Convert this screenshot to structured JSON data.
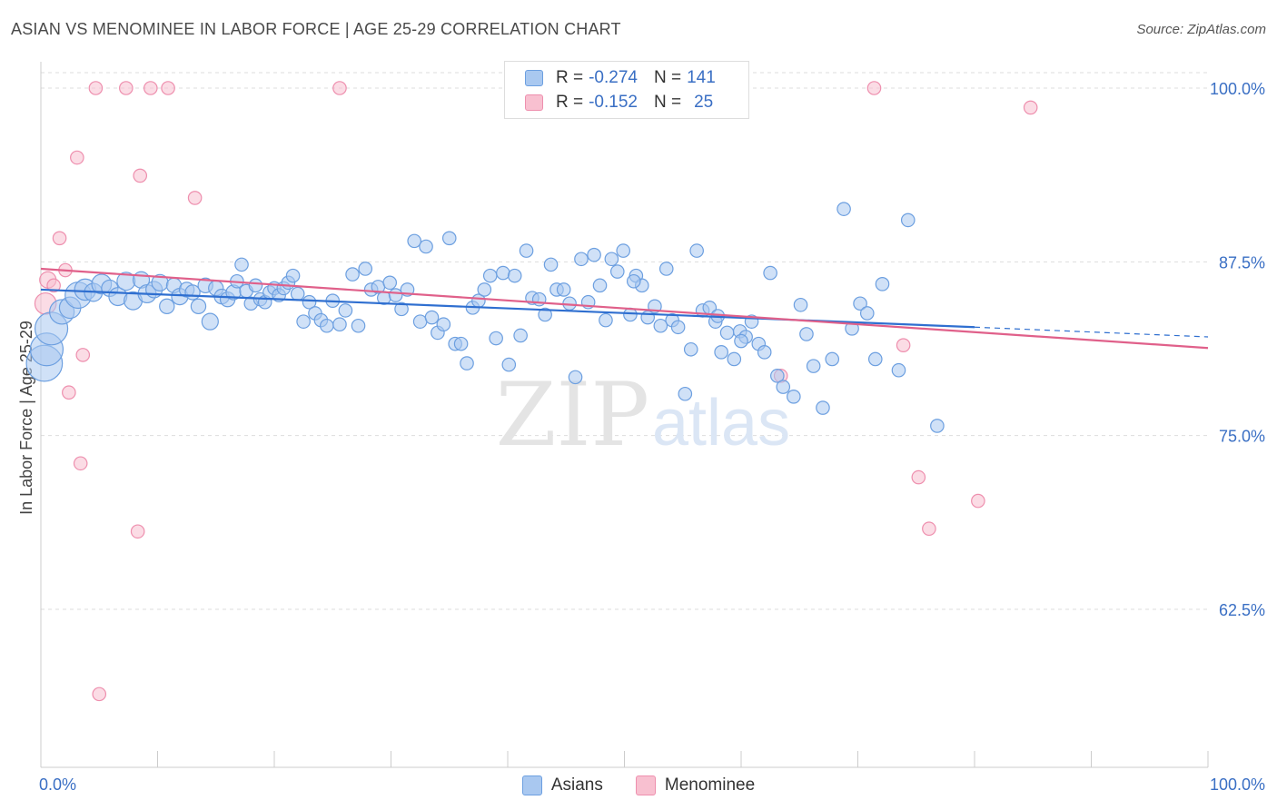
{
  "title": "ASIAN VS MENOMINEE IN LABOR FORCE | AGE 25-29 CORRELATION CHART",
  "source": "Source: ZipAtlas.com",
  "watermark": {
    "zip": "ZIP",
    "atlas": "atlas"
  },
  "legend": {
    "asians": {
      "r_label": "R =",
      "r_value": "-0.274",
      "n_label": "N =",
      "n_value": "141"
    },
    "menominee": {
      "r_label": "R =",
      "r_value": "-0.152",
      "n_label": "N =",
      "n_value": "25"
    }
  },
  "colors": {
    "asians_fill": "#a9c8f0",
    "asians_stroke": "#6c9fe0",
    "asians_line": "#2f6fd0",
    "menominee_fill": "#f8c0d0",
    "menominee_stroke": "#ee8fae",
    "menominee_line": "#e0608a",
    "tick_label": "#3a6fc4",
    "grid": "#dddddd"
  },
  "chart_data": {
    "type": "scatter",
    "title": "ASIAN VS MENOMINEE IN LABOR FORCE | AGE 25-29 CORRELATION CHART",
    "xlabel": "",
    "ylabel": "In Labor Force | Age 25-29",
    "xlim": [
      0,
      100
    ],
    "ylim": [
      50.5,
      101.5
    ],
    "x_tick_labels": [
      "0.0%",
      "100.0%"
    ],
    "y_ticks": [
      62.5,
      75.0,
      87.5,
      100.0
    ],
    "y_tick_labels": [
      "62.5%",
      "75.0%",
      "87.5%",
      "100.0%"
    ],
    "grid": true,
    "legend_position": "top-center",
    "series": [
      {
        "name": "Asians",
        "r": -0.274,
        "n": 141,
        "trend": {
          "x0": 0,
          "y0": 85.5,
          "x1": 80,
          "y1": 82.8,
          "dashed_to_x": 100,
          "dashed_to_y": 82.1
        },
        "points": [
          [
            0.3,
            80.2,
            2.2
          ],
          [
            0.5,
            81.2,
            2.0
          ],
          [
            0.9,
            82.7,
            2.0
          ],
          [
            1.8,
            83.9,
            1.5
          ],
          [
            2.5,
            84.2,
            1.3
          ],
          [
            3.2,
            85.1,
            1.6
          ],
          [
            3.8,
            85.5,
            1.3
          ],
          [
            4.5,
            85.3,
            1.1
          ],
          [
            5.2,
            85.9,
            1.2
          ],
          [
            5.9,
            85.6,
            1.0
          ],
          [
            6.6,
            85.0,
            1.1
          ],
          [
            7.3,
            86.1,
            1.1
          ],
          [
            7.9,
            84.7,
            1.1
          ],
          [
            8.6,
            86.2,
            1.0
          ],
          [
            9.1,
            85.2,
            1.1
          ],
          [
            9.7,
            85.5,
            1.0
          ],
          [
            10.2,
            86.0,
            1.0
          ],
          [
            10.8,
            84.3,
            0.9
          ],
          [
            11.4,
            85.8,
            0.9
          ],
          [
            11.9,
            85.0,
            1.0
          ],
          [
            12.5,
            85.5,
            0.9
          ],
          [
            13.0,
            85.3,
            0.9
          ],
          [
            13.5,
            84.3,
            0.9
          ],
          [
            14.1,
            85.8,
            0.9
          ],
          [
            14.5,
            83.2,
            1.0
          ],
          [
            15.0,
            85.6,
            0.9
          ],
          [
            15.5,
            85.0,
            0.9
          ],
          [
            16.0,
            84.8,
            0.9
          ],
          [
            16.5,
            85.3,
            0.9
          ],
          [
            16.8,
            86.1,
            0.8
          ],
          [
            17.2,
            87.3,
            0.8
          ],
          [
            17.6,
            85.4,
            0.8
          ],
          [
            18.0,
            84.5,
            0.8
          ],
          [
            18.4,
            85.8,
            0.8
          ],
          [
            18.8,
            84.8,
            0.8
          ],
          [
            19.2,
            84.6,
            0.8
          ],
          [
            19.6,
            85.3,
            0.8
          ],
          [
            20.0,
            85.6,
            0.8
          ],
          [
            20.4,
            85.1,
            0.8
          ],
          [
            20.8,
            85.6,
            0.8
          ],
          [
            21.2,
            86.0,
            0.8
          ],
          [
            21.6,
            86.5,
            0.8
          ],
          [
            22.0,
            85.2,
            0.8
          ],
          [
            22.5,
            83.2,
            0.8
          ],
          [
            23.0,
            84.6,
            0.8
          ],
          [
            23.5,
            83.8,
            0.8
          ],
          [
            24.0,
            83.3,
            0.8
          ],
          [
            24.5,
            82.9,
            0.8
          ],
          [
            25.0,
            84.7,
            0.8
          ],
          [
            25.6,
            83.0,
            0.8
          ],
          [
            26.1,
            84.0,
            0.8
          ],
          [
            26.7,
            86.6,
            0.8
          ],
          [
            27.2,
            82.9,
            0.8
          ],
          [
            27.8,
            87.0,
            0.8
          ],
          [
            28.3,
            85.5,
            0.8
          ],
          [
            28.9,
            85.7,
            0.8
          ],
          [
            29.4,
            84.9,
            0.8
          ],
          [
            29.9,
            86.0,
            0.8
          ],
          [
            30.4,
            85.1,
            0.8
          ],
          [
            30.9,
            84.1,
            0.8
          ],
          [
            31.4,
            85.5,
            0.8
          ],
          [
            32.0,
            89.0,
            0.8
          ],
          [
            32.5,
            83.2,
            0.8
          ],
          [
            33.0,
            88.6,
            0.8
          ],
          [
            33.5,
            83.5,
            0.8
          ],
          [
            34.0,
            82.4,
            0.8
          ],
          [
            34.5,
            83.0,
            0.8
          ],
          [
            35.0,
            89.2,
            0.8
          ],
          [
            35.5,
            81.6,
            0.8
          ],
          [
            36.0,
            81.6,
            0.8
          ],
          [
            36.5,
            80.2,
            0.8
          ],
          [
            37.0,
            84.2,
            0.8
          ],
          [
            37.5,
            84.7,
            0.8
          ],
          [
            38.0,
            85.5,
            0.8
          ],
          [
            38.5,
            86.5,
            0.8
          ],
          [
            39.0,
            82.0,
            0.8
          ],
          [
            39.6,
            86.7,
            0.8
          ],
          [
            40.1,
            80.1,
            0.8
          ],
          [
            40.6,
            86.5,
            0.8
          ],
          [
            41.1,
            82.2,
            0.8
          ],
          [
            41.6,
            88.3,
            0.8
          ],
          [
            42.1,
            84.9,
            0.8
          ],
          [
            42.7,
            84.8,
            0.8
          ],
          [
            43.2,
            83.7,
            0.8
          ],
          [
            43.7,
            87.3,
            0.8
          ],
          [
            44.2,
            85.5,
            0.8
          ],
          [
            44.8,
            85.5,
            0.8
          ],
          [
            45.3,
            84.5,
            0.8
          ],
          [
            45.8,
            79.2,
            0.8
          ],
          [
            46.3,
            87.7,
            0.8
          ],
          [
            46.9,
            84.6,
            0.8
          ],
          [
            47.4,
            88.0,
            0.8
          ],
          [
            47.9,
            85.8,
            0.8
          ],
          [
            48.4,
            83.3,
            0.8
          ],
          [
            48.9,
            87.7,
            0.8
          ],
          [
            49.4,
            86.8,
            0.8
          ],
          [
            49.9,
            88.3,
            0.8
          ],
          [
            50.5,
            83.7,
            0.8
          ],
          [
            51.0,
            86.5,
            0.8
          ],
          [
            51.5,
            85.8,
            0.8
          ],
          [
            52.0,
            83.5,
            0.8
          ],
          [
            52.6,
            84.3,
            0.8
          ],
          [
            53.1,
            82.9,
            0.8
          ],
          [
            53.6,
            87.0,
            0.8
          ],
          [
            54.1,
            83.3,
            0.8
          ],
          [
            54.6,
            82.8,
            0.8
          ],
          [
            55.2,
            78.0,
            0.8
          ],
          [
            55.7,
            81.2,
            0.8
          ],
          [
            56.2,
            88.3,
            0.8
          ],
          [
            56.7,
            84.0,
            0.8
          ],
          [
            57.3,
            84.2,
            0.8
          ],
          [
            57.8,
            83.2,
            0.8
          ],
          [
            58.3,
            81.0,
            0.8
          ],
          [
            58.8,
            82.4,
            0.8
          ],
          [
            59.4,
            80.5,
            0.8
          ],
          [
            59.9,
            82.5,
            0.8
          ],
          [
            60.4,
            82.1,
            0.8
          ],
          [
            60.9,
            83.2,
            0.8
          ],
          [
            61.5,
            81.6,
            0.8
          ],
          [
            62.0,
            81.0,
            0.8
          ],
          [
            62.5,
            86.7,
            0.8
          ],
          [
            63.1,
            79.3,
            0.8
          ],
          [
            63.6,
            78.5,
            0.8
          ],
          [
            64.5,
            77.8,
            0.8
          ],
          [
            65.1,
            84.4,
            0.8
          ],
          [
            65.6,
            82.3,
            0.8
          ],
          [
            66.2,
            80.0,
            0.8
          ],
          [
            67.0,
            77.0,
            0.8
          ],
          [
            67.8,
            80.5,
            0.8
          ],
          [
            68.8,
            91.3,
            0.8
          ],
          [
            69.5,
            82.7,
            0.8
          ],
          [
            70.2,
            84.5,
            0.8
          ],
          [
            70.8,
            83.8,
            0.8
          ],
          [
            71.5,
            80.5,
            0.8
          ],
          [
            72.1,
            85.9,
            0.8
          ],
          [
            73.5,
            79.7,
            0.8
          ],
          [
            74.3,
            90.5,
            0.8
          ],
          [
            76.8,
            75.7,
            0.8
          ],
          [
            58.0,
            83.6,
            0.8
          ],
          [
            60.0,
            81.8,
            0.8
          ],
          [
            50.8,
            86.1,
            0.8
          ]
        ]
      },
      {
        "name": "Menominee",
        "r": -0.152,
        "n": 25,
        "trend": {
          "x0": 0,
          "y0": 87.0,
          "x1": 100,
          "y1": 81.3
        },
        "points": [
          [
            0.6,
            86.2,
            1.0
          ],
          [
            1.1,
            85.8,
            0.8
          ],
          [
            1.6,
            89.2,
            0.8
          ],
          [
            2.1,
            86.9,
            0.8
          ],
          [
            2.4,
            78.1,
            0.8
          ],
          [
            3.1,
            95.0,
            0.8
          ],
          [
            3.4,
            73.0,
            0.8
          ],
          [
            3.6,
            80.8,
            0.8
          ],
          [
            4.7,
            100.0,
            0.8
          ],
          [
            5.0,
            56.4,
            0.8
          ],
          [
            7.3,
            100.0,
            0.8
          ],
          [
            8.3,
            68.1,
            0.8
          ],
          [
            8.5,
            93.7,
            0.8
          ],
          [
            9.4,
            100.0,
            0.8
          ],
          [
            10.9,
            100.0,
            0.8
          ],
          [
            13.2,
            92.1,
            0.8
          ],
          [
            25.6,
            100.0,
            0.8
          ],
          [
            63.4,
            79.3,
            0.8
          ],
          [
            71.4,
            100.0,
            0.8
          ],
          [
            73.9,
            81.5,
            0.8
          ],
          [
            75.2,
            72.0,
            0.8
          ],
          [
            76.1,
            68.3,
            0.8
          ],
          [
            80.3,
            70.3,
            0.8
          ],
          [
            84.8,
            98.6,
            0.8
          ],
          [
            0.4,
            84.5,
            1.3
          ]
        ]
      }
    ]
  },
  "bottom_legend": {
    "asians": "Asians",
    "menominee": "Menominee"
  }
}
